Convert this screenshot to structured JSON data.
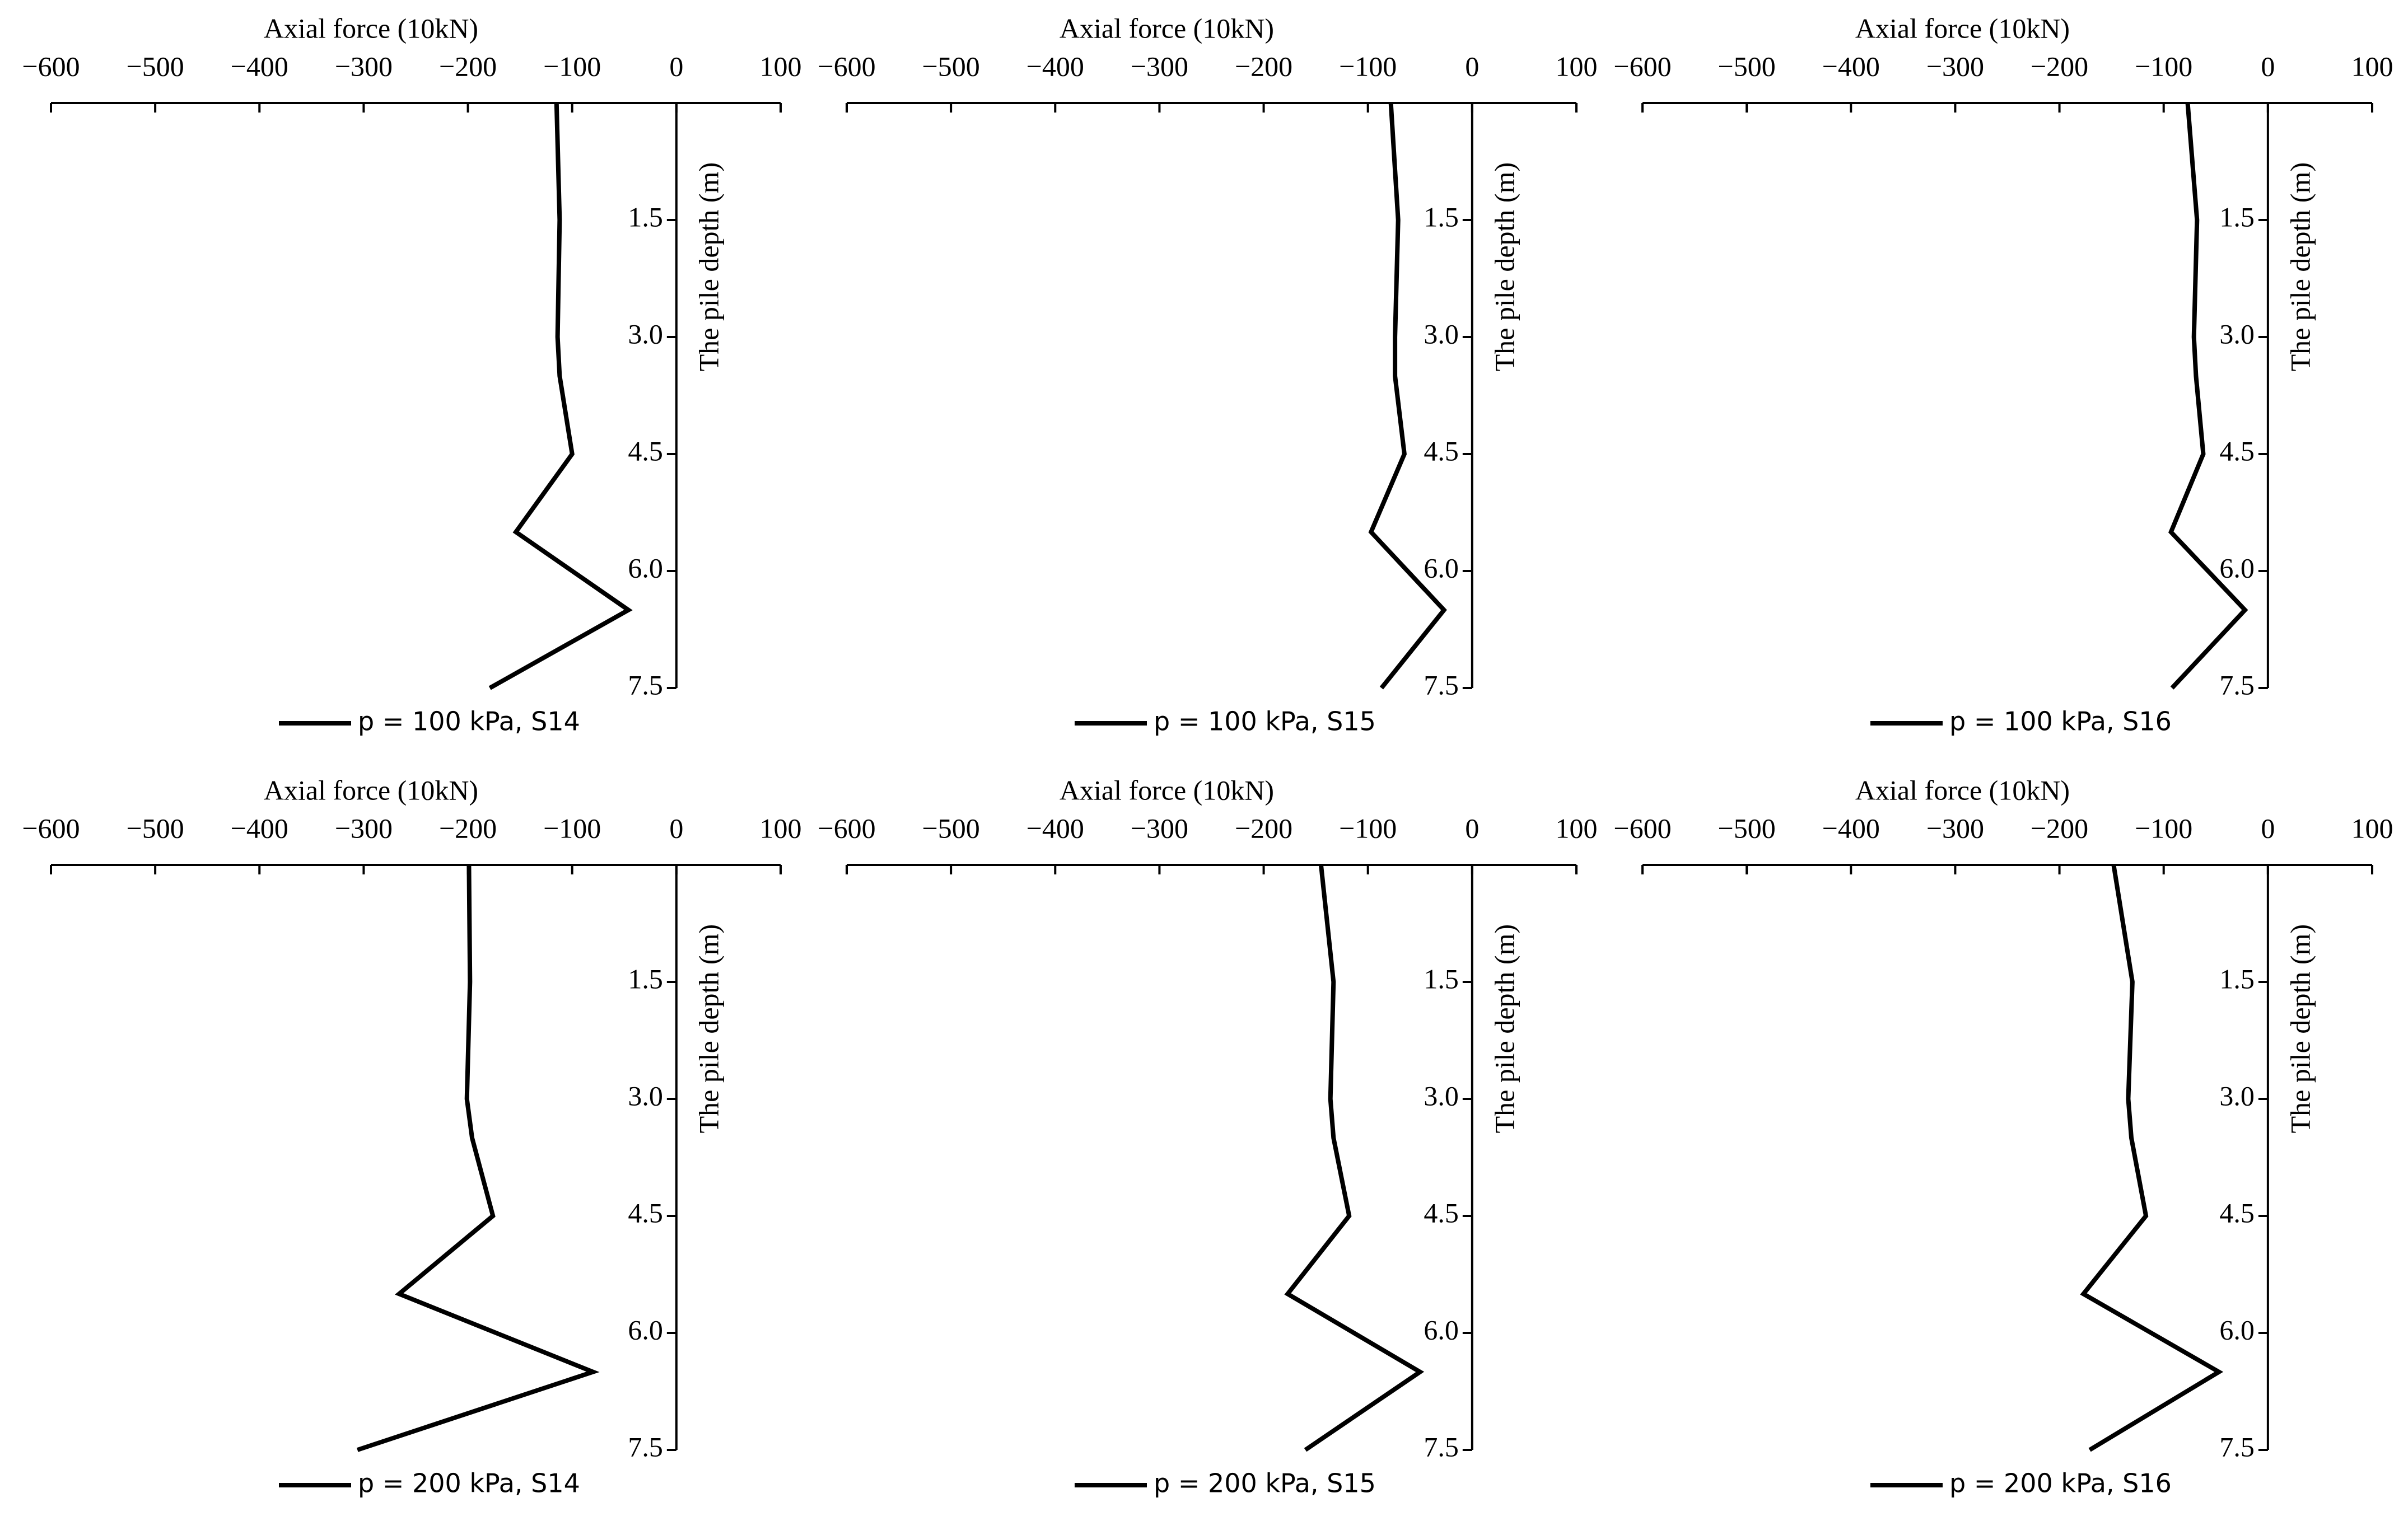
{
  "chart_data": [
    {
      "type": "line",
      "x_label": "Axial force (10kN)",
      "y_label": "The pile depth (m)",
      "xlim": [
        -600,
        100
      ],
      "xticks": [
        {
          "value": -600,
          "label": "−600"
        },
        {
          "value": -500,
          "label": "−500"
        },
        {
          "value": -400,
          "label": "−400"
        },
        {
          "value": -300,
          "label": "−300"
        },
        {
          "value": -200,
          "label": "−200"
        },
        {
          "value": -100,
          "label": "−100"
        },
        0,
        100
      ],
      "ylim": [
        0,
        7.5
      ],
      "yticks": [
        1.5,
        {
          "value": 3,
          "label": "3.0"
        },
        4.5,
        {
          "value": 6,
          "label": "6.0"
        },
        7.5
      ],
      "y": [
        0,
        1.5,
        3,
        3.5,
        4.5,
        5.5,
        6.5,
        7.5
      ],
      "series": [
        {
          "name": "p = 100 kPa, S14",
          "color": "#000000",
          "values": [
            -115,
            -112,
            -114,
            -112,
            -100,
            -154,
            -46,
            -179
          ]
        }
      ]
    },
    {
      "type": "line",
      "x_label": "Axial force (10kN)",
      "y_label": "The pile depth (m)",
      "xlim": [
        -600,
        100
      ],
      "xticks": [
        {
          "value": -600,
          "label": "−600"
        },
        {
          "value": -500,
          "label": "−500"
        },
        {
          "value": -400,
          "label": "−400"
        },
        {
          "value": -300,
          "label": "−300"
        },
        {
          "value": -200,
          "label": "−200"
        },
        {
          "value": -100,
          "label": "−100"
        },
        0,
        100
      ],
      "ylim": [
        0,
        7.5
      ],
      "yticks": [
        1.5,
        {
          "value": 3,
          "label": "3.0"
        },
        4.5,
        {
          "value": 6,
          "label": "6.0"
        },
        7.5
      ],
      "y": [
        0,
        1.5,
        3,
        3.5,
        4.5,
        5.5,
        6.5,
        7.5
      ],
      "series": [
        {
          "name": "p = 100 kPa, S15",
          "color": "#000000",
          "values": [
            -78,
            -71,
            -74,
            -74,
            -65,
            -97,
            -27,
            -87
          ]
        }
      ]
    },
    {
      "type": "line",
      "x_label": "Axial force (10kN)",
      "y_label": "The pile depth (m)",
      "xlim": [
        -600,
        100
      ],
      "xticks": [
        {
          "value": -600,
          "label": "−600"
        },
        {
          "value": -500,
          "label": "−500"
        },
        {
          "value": -400,
          "label": "−400"
        },
        {
          "value": -300,
          "label": "−300"
        },
        {
          "value": -200,
          "label": "−200"
        },
        {
          "value": -100,
          "label": "−100"
        },
        0,
        100
      ],
      "ylim": [
        0,
        7.5
      ],
      "yticks": [
        1.5,
        {
          "value": 3,
          "label": "3.0"
        },
        4.5,
        {
          "value": 6,
          "label": "6.0"
        },
        7.5
      ],
      "y": [
        0,
        1.5,
        3,
        3.5,
        4.5,
        5.5,
        6.5,
        7.5
      ],
      "series": [
        {
          "name": "p = 100 kPa, S16",
          "color": "#000000",
          "values": [
            -77,
            -68,
            -71,
            -69,
            -62,
            -93,
            -22,
            -92
          ]
        }
      ]
    },
    {
      "type": "line",
      "x_label": "Axial force (10kN)",
      "y_label": "The pile depth (m)",
      "xlim": [
        -600,
        100
      ],
      "xticks": [
        {
          "value": -600,
          "label": "−600"
        },
        {
          "value": -500,
          "label": "−500"
        },
        {
          "value": -400,
          "label": "−400"
        },
        {
          "value": -300,
          "label": "−300"
        },
        {
          "value": -200,
          "label": "−200"
        },
        {
          "value": -100,
          "label": "−100"
        },
        0,
        100
      ],
      "ylim": [
        0,
        7.5
      ],
      "yticks": [
        1.5,
        {
          "value": 3,
          "label": "3.0"
        },
        4.5,
        {
          "value": 6,
          "label": "6.0"
        },
        7.5
      ],
      "y": [
        0,
        1.5,
        3,
        3.5,
        4.5,
        5.5,
        6.5,
        7.5
      ],
      "series": [
        {
          "name": "p = 200 kPa, S14",
          "color": "#000000",
          "values": [
            -199,
            -198,
            -201,
            -196,
            -176,
            -266,
            -80,
            -306
          ]
        }
      ]
    },
    {
      "type": "line",
      "x_label": "Axial force (10kN)",
      "y_label": "The pile depth (m)",
      "xlim": [
        -600,
        100
      ],
      "xticks": [
        {
          "value": -600,
          "label": "−600"
        },
        {
          "value": -500,
          "label": "−500"
        },
        {
          "value": -400,
          "label": "−400"
        },
        {
          "value": -300,
          "label": "−300"
        },
        {
          "value": -200,
          "label": "−200"
        },
        {
          "value": -100,
          "label": "−100"
        },
        0,
        100
      ],
      "ylim": [
        0,
        7.5
      ],
      "yticks": [
        1.5,
        {
          "value": 3,
          "label": "3.0"
        },
        4.5,
        {
          "value": 6,
          "label": "6.0"
        },
        7.5
      ],
      "y": [
        0,
        1.5,
        3,
        3.5,
        4.5,
        5.5,
        6.5,
        7.5
      ],
      "series": [
        {
          "name": "p = 200 kPa, S15",
          "color": "#000000",
          "values": [
            -145,
            -133,
            -136,
            -133,
            -118,
            -177,
            -50,
            -160
          ]
        }
      ]
    },
    {
      "type": "line",
      "x_label": "Axial force (10kN)",
      "y_label": "The pile depth (m)",
      "xlim": [
        -600,
        100
      ],
      "xticks": [
        {
          "value": -600,
          "label": "−600"
        },
        {
          "value": -500,
          "label": "−500"
        },
        {
          "value": -400,
          "label": "−400"
        },
        {
          "value": -300,
          "label": "−300"
        },
        {
          "value": -200,
          "label": "−200"
        },
        {
          "value": -100,
          "label": "−100"
        },
        0,
        100
      ],
      "ylim": [
        0,
        7.5
      ],
      "yticks": [
        1.5,
        {
          "value": 3,
          "label": "3.0"
        },
        4.5,
        {
          "value": 6,
          "label": "6.0"
        },
        7.5
      ],
      "y": [
        0,
        1.5,
        3,
        3.5,
        4.5,
        5.5,
        6.5,
        7.5
      ],
      "series": [
        {
          "name": "p = 200 kPa, S16",
          "color": "#000000",
          "values": [
            -148,
            -130,
            -134,
            -131,
            -117,
            -177,
            -47,
            -171
          ]
        }
      ]
    }
  ]
}
